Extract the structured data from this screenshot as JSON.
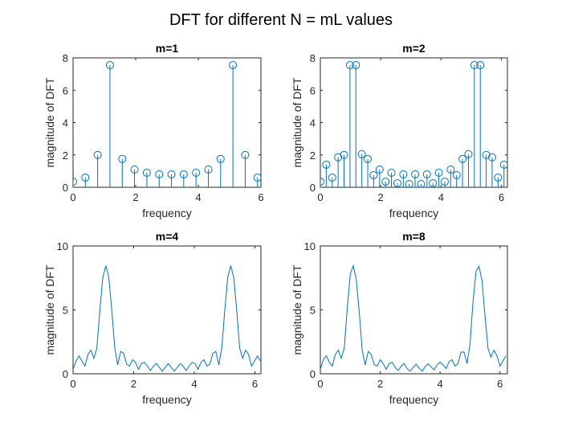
{
  "figure": {
    "supertitle": "DFT for different N = mL values"
  },
  "chart_data": [
    {
      "type": "stem",
      "title": "m=1",
      "xlabel": "frequency",
      "ylabel": "magnitude of DFT",
      "xlim": [
        0,
        6
      ],
      "ylim": [
        0,
        8
      ],
      "xticks": [
        0,
        2,
        4,
        6
      ],
      "yticks": [
        0,
        2,
        4,
        6,
        8
      ],
      "x": [
        0,
        0.393,
        0.785,
        1.178,
        1.571,
        1.963,
        2.356,
        2.749,
        3.142,
        3.534,
        3.927,
        4.32,
        4.712,
        5.105,
        5.498,
        5.89
      ],
      "values": [
        0.35,
        0.6,
        2.0,
        7.55,
        1.75,
        1.1,
        0.9,
        0.8,
        0.8,
        0.8,
        0.9,
        1.1,
        1.75,
        7.55,
        2.0,
        0.6
      ]
    },
    {
      "type": "stem",
      "title": "m=2",
      "xlabel": "frequency",
      "ylabel": "magnitude of DFT",
      "xlim": [
        0,
        6.2
      ],
      "ylim": [
        0,
        8
      ],
      "xticks": [
        0,
        2,
        4,
        6
      ],
      "yticks": [
        0,
        2,
        4,
        6,
        8
      ],
      "x": [
        0,
        0.196,
        0.393,
        0.589,
        0.785,
        0.982,
        1.178,
        1.374,
        1.571,
        1.767,
        1.963,
        2.16,
        2.356,
        2.553,
        2.749,
        2.945,
        3.142,
        3.338,
        3.534,
        3.731,
        3.927,
        4.123,
        4.32,
        4.516,
        4.712,
        4.909,
        5.105,
        5.301,
        5.498,
        5.694,
        5.89,
        6.087
      ],
      "values": [
        0.35,
        1.4,
        0.6,
        1.85,
        2.0,
        7.55,
        7.55,
        2.05,
        1.75,
        0.75,
        1.1,
        0.35,
        0.9,
        0.25,
        0.8,
        0.2,
        0.8,
        0.2,
        0.8,
        0.25,
        0.9,
        0.35,
        1.1,
        0.75,
        1.75,
        2.05,
        7.55,
        7.55,
        2.0,
        1.85,
        0.6,
        1.4
      ]
    },
    {
      "type": "line",
      "title": "m=4",
      "xlabel": "frequency",
      "ylabel": "magnitude of DFT",
      "xlim": [
        0,
        6.2
      ],
      "ylim": [
        0,
        10
      ],
      "xticks": [
        0,
        2,
        4,
        6
      ],
      "yticks": [
        0,
        5,
        10
      ],
      "x": [
        0,
        0.098,
        0.196,
        0.295,
        0.393,
        0.491,
        0.589,
        0.687,
        0.785,
        0.884,
        0.982,
        1.08,
        1.178,
        1.276,
        1.374,
        1.473,
        1.571,
        1.669,
        1.767,
        1.865,
        1.963,
        2.062,
        2.16,
        2.258,
        2.356,
        2.454,
        2.553,
        2.651,
        2.749,
        2.847,
        2.945,
        3.043,
        3.142,
        3.24,
        3.338,
        3.436,
        3.534,
        3.632,
        3.731,
        3.829,
        3.927,
        4.025,
        4.123,
        4.221,
        4.32,
        4.418,
        4.516,
        4.614,
        4.712,
        4.811,
        4.909,
        5.007,
        5.105,
        5.203,
        5.301,
        5.4,
        5.498,
        5.596,
        5.694,
        5.792,
        5.89,
        5.989,
        6.087,
        6.185
      ],
      "values": [
        0.35,
        1.0,
        1.4,
        1.0,
        0.6,
        1.5,
        1.85,
        1.2,
        2.0,
        5.0,
        7.55,
        8.45,
        7.55,
        5.0,
        2.05,
        0.7,
        1.75,
        1.6,
        0.75,
        0.6,
        1.1,
        0.9,
        0.35,
        0.8,
        0.9,
        0.6,
        0.25,
        0.6,
        0.8,
        0.5,
        0.2,
        0.5,
        0.8,
        0.5,
        0.2,
        0.5,
        0.8,
        0.6,
        0.25,
        0.6,
        0.9,
        0.8,
        0.35,
        0.9,
        1.1,
        0.6,
        0.75,
        1.6,
        1.75,
        0.7,
        2.05,
        5.0,
        7.55,
        8.45,
        7.55,
        5.0,
        2.0,
        1.2,
        1.85,
        1.5,
        0.6,
        1.0,
        1.4,
        1.0
      ]
    },
    {
      "type": "line",
      "title": "m=8",
      "xlabel": "frequency",
      "ylabel": "magnitude of DFT",
      "xlim": [
        0,
        6.25
      ],
      "ylim": [
        0,
        10
      ],
      "xticks": [
        0,
        2,
        4,
        6
      ],
      "yticks": [
        0,
        5,
        10
      ],
      "x": [
        0,
        0.1,
        0.2,
        0.3,
        0.4,
        0.5,
        0.6,
        0.7,
        0.8,
        0.9,
        1.0,
        1.1,
        1.2,
        1.3,
        1.4,
        1.5,
        1.6,
        1.7,
        1.8,
        1.9,
        2.0,
        2.1,
        2.2,
        2.3,
        2.4,
        2.5,
        2.6,
        2.7,
        2.8,
        2.9,
        3.0,
        3.1,
        3.2,
        3.3,
        3.4,
        3.5,
        3.6,
        3.7,
        3.8,
        3.9,
        4.0,
        4.1,
        4.2,
        4.3,
        4.4,
        4.5,
        4.6,
        4.7,
        4.8,
        4.9,
        5.0,
        5.1,
        5.2,
        5.3,
        5.4,
        5.5,
        5.6,
        5.7,
        5.8,
        5.9,
        6.0,
        6.1,
        6.2
      ],
      "values": [
        0.35,
        1.1,
        1.4,
        0.9,
        0.6,
        1.5,
        1.85,
        1.2,
        2.0,
        5.2,
        7.8,
        8.45,
        7.4,
        4.8,
        1.8,
        0.7,
        1.75,
        1.5,
        0.7,
        0.6,
        1.1,
        0.8,
        0.35,
        0.8,
        0.9,
        0.5,
        0.25,
        0.6,
        0.8,
        0.4,
        0.2,
        0.5,
        0.75,
        0.45,
        0.2,
        0.55,
        0.8,
        0.55,
        0.3,
        0.7,
        0.9,
        0.7,
        0.4,
        0.95,
        1.1,
        0.6,
        0.8,
        1.7,
        1.7,
        0.8,
        2.3,
        5.6,
        8.0,
        8.4,
        7.3,
        4.6,
        2.0,
        1.3,
        1.85,
        1.4,
        0.6,
        1.0,
        1.4
      ]
    }
  ]
}
